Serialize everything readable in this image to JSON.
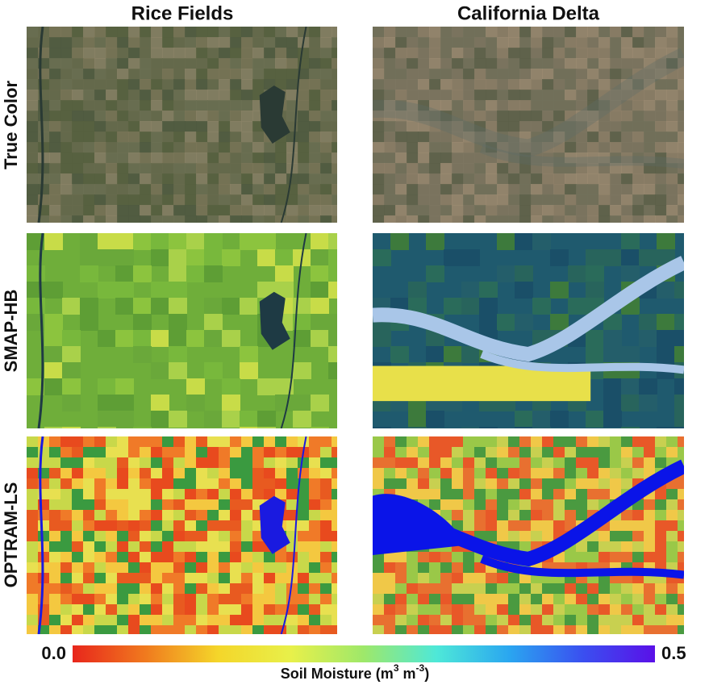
{
  "columns": [
    "Rice Fields",
    "California Delta"
  ],
  "rows": [
    "True Color",
    "SMAP-HB",
    "OPTRAM-LS"
  ],
  "colorbar": {
    "lim": [
      0,
      0.5
    ],
    "ticks": [
      {
        "value": 0,
        "label": "0.0"
      },
      {
        "value": 0.5,
        "label": "0.5"
      }
    ],
    "label": [
      "Soil Moisture (m",
      "3",
      " m",
      "-3",
      ")"
    ],
    "colors": [
      "#e8261c",
      "#f07a1e",
      "#f4d62a",
      "#e8f04a",
      "#9ee86a",
      "#4ee8d8",
      "#2aa6f0",
      "#3a50f0",
      "#5a10e8"
    ]
  }
}
